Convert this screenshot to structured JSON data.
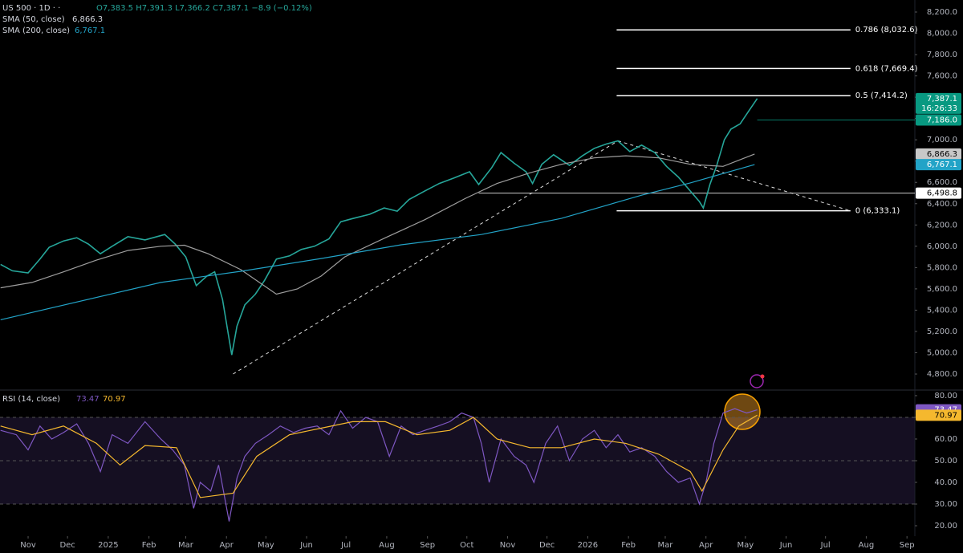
{
  "chart_data": [
    {
      "type": "line",
      "ohlc": "O7,383.5 H7,391.3 L7,366.2 C7,387.1 −8.9 (−0.12%)",
      "countdown": "16:26:33",
      "xlim": [
        -21.4,
        675
      ],
      "xticks": [
        {
          "value": 0,
          "label": "Nov"
        },
        {
          "value": 30,
          "label": "Dec"
        },
        {
          "value": 61,
          "label": "2025"
        },
        {
          "value": 92,
          "label": "Feb"
        },
        {
          "value": 120,
          "label": "Mar"
        },
        {
          "value": 151,
          "label": "Apr"
        },
        {
          "value": 181,
          "label": "May"
        },
        {
          "value": 212,
          "label": "Jun"
        },
        {
          "value": 242,
          "label": "Jul"
        },
        {
          "value": 273,
          "label": "Aug"
        },
        {
          "value": 304,
          "label": "Sep"
        },
        {
          "value": 334,
          "label": "Oct"
        },
        {
          "value": 365,
          "label": "Nov"
        },
        {
          "value": 395,
          "label": "Dec"
        },
        {
          "value": 426,
          "label": "2026"
        },
        {
          "value": 457,
          "label": "Feb"
        },
        {
          "value": 485,
          "label": "Mar"
        },
        {
          "value": 516,
          "label": "Apr"
        },
        {
          "value": 546,
          "label": "May"
        },
        {
          "value": 577,
          "label": "Jun"
        },
        {
          "value": 607,
          "label": "Jul"
        },
        {
          "value": 638,
          "label": "Aug"
        },
        {
          "value": 669,
          "label": "Sep"
        }
      ],
      "ylim": [
        4657,
        8313
      ],
      "yticks": [
        {
          "value": 4800,
          "label": "4,800.0"
        },
        {
          "value": 5000,
          "label": "5,000.0"
        },
        {
          "value": 5200,
          "label": "5,200.0"
        },
        {
          "value": 5400,
          "label": "5,400.0"
        },
        {
          "value": 5600,
          "label": "5,600.0"
        },
        {
          "value": 5800,
          "label": "5,800.0"
        },
        {
          "value": 6000,
          "label": "6,000.0"
        },
        {
          "value": 6200,
          "label": "6,200.0"
        },
        {
          "value": 6400,
          "label": "6,400.0"
        },
        {
          "value": 6600,
          "label": "6,600.0"
        },
        {
          "value": 6800,
          "label": "6,800.0"
        },
        {
          "value": 7000,
          "label": "7,000.0"
        },
        {
          "value": 7200,
          "label": "7,200.0"
        },
        {
          "value": 7400,
          "label": "7,400.0"
        },
        {
          "value": 7600,
          "label": "7,600.0"
        },
        {
          "value": 7800,
          "label": "7,800.0"
        },
        {
          "value": 8000,
          "label": "8,000.0"
        },
        {
          "value": 8200,
          "label": "8,200.0"
        }
      ],
      "grid": false,
      "series": [
        {
          "name": "US 500 · 1D · ·",
          "color": "#26a69a",
          "x": [
            -21,
            -12,
            0,
            9,
            16,
            27,
            37,
            46,
            55,
            64,
            76,
            89,
            104,
            112,
            120,
            128,
            136,
            142,
            148,
            155,
            159,
            165,
            173,
            180,
            189,
            199,
            208,
            218,
            229,
            238,
            247,
            260,
            271,
            281,
            290,
            302,
            313,
            324,
            336,
            343,
            353,
            360,
            370,
            379,
            384,
            391,
            400,
            412,
            422,
            431,
            440,
            449,
            458,
            467,
            477,
            486,
            495,
            504,
            511,
            514,
            519,
            524,
            530,
            535,
            542,
            548,
            555
          ],
          "values": [
            5830,
            5770,
            5750,
            5880,
            5990,
            6050,
            6080,
            6020,
            5930,
            6000,
            6090,
            6060,
            6110,
            6020,
            5900,
            5630,
            5720,
            5760,
            5500,
            4980,
            5250,
            5450,
            5550,
            5680,
            5880,
            5910,
            5970,
            6000,
            6070,
            6230,
            6260,
            6300,
            6360,
            6330,
            6440,
            6520,
            6590,
            6640,
            6700,
            6580,
            6740,
            6880,
            6780,
            6700,
            6590,
            6770,
            6860,
            6760,
            6850,
            6920,
            6960,
            6990,
            6890,
            6950,
            6880,
            6750,
            6650,
            6520,
            6420,
            6360,
            6580,
            6750,
            7000,
            7100,
            7150,
            7260,
            7387.1
          ]
        },
        {
          "name": "SMA (50, close)",
          "color": "#9e9e9e",
          "x": [
            -21,
            3,
            27,
            52,
            76,
            101,
            119,
            137,
            162,
            189,
            205,
            223,
            241,
            272,
            302,
            333,
            357,
            382,
            406,
            431,
            455,
            480,
            504,
            529,
            553
          ],
          "values": [
            5610,
            5660,
            5760,
            5870,
            5960,
            6000,
            6010,
            5930,
            5780,
            5550,
            5600,
            5720,
            5900,
            6080,
            6250,
            6450,
            6590,
            6690,
            6770,
            6830,
            6850,
            6830,
            6770,
            6750,
            6866.3
          ]
        },
        {
          "name": "SMA (200, close)",
          "color": "#22a3c7",
          "x": [
            -21,
            101,
            162,
            223,
            284,
            345,
            406,
            467,
            504,
            553
          ],
          "values": [
            5310,
            5660,
            5765,
            5885,
            6014,
            6110,
            6262,
            6480,
            6595,
            6767.1
          ]
        }
      ],
      "price_labels": [
        {
          "value": 7387.1,
          "label": "7,387.1",
          "color": "#089981"
        },
        {
          "value": 7186,
          "label": "7,186.0",
          "color": "#089981",
          "line_from": 555
        },
        {
          "value": 6866.3,
          "label": "6,866.3",
          "color": "#c8c8c8"
        },
        {
          "value": 6767.1,
          "label": "6,767.1",
          "color": "#22a3c7"
        },
        {
          "value": 6498.8,
          "label": "6,498.8",
          "color": "#ffffff",
          "line_from": 343
        }
      ],
      "fib_range": [
        448,
        626
      ],
      "fib_levels": [
        {
          "value": 8032.6,
          "label": "0.786 (8,032.6)"
        },
        {
          "value": 7669.4,
          "label": "0.618 (7,669.4)"
        },
        {
          "value": 7414.2,
          "label": "0.5 (7,414.2)"
        },
        {
          "value": 6333.1,
          "label": "0 (6,333.1)"
        }
      ],
      "trendlines": [
        {
          "x": [
            156,
            449
          ],
          "values": [
            4800,
            6990
          ]
        },
        {
          "x": [
            449,
            626
          ],
          "values": [
            6990,
            6333.1
          ]
        }
      ]
    },
    {
      "type": "line",
      "ylim": [
        15.2,
        82.2
      ],
      "yticks": [
        {
          "value": 20,
          "label": "20.00"
        },
        {
          "value": 30,
          "label": "30.00"
        },
        {
          "value": 40,
          "label": "40.00"
        },
        {
          "value": 50,
          "label": "50.00"
        },
        {
          "value": 60,
          "label": "60.00"
        },
        {
          "value": 70,
          "label": "70.00"
        },
        {
          "value": 80,
          "label": "80.00"
        }
      ],
      "band": [
        30,
        70
      ],
      "dashed_levels": [
        70,
        50,
        30
      ],
      "series": [
        {
          "name": "RSI (14, close)",
          "color": "#7e57c2",
          "x": [
            -21,
            -9,
            0,
            9,
            18,
            27,
            37,
            46,
            55,
            64,
            76,
            89,
            101,
            110,
            119,
            126,
            131,
            139,
            145,
            153,
            159,
            165,
            173,
            183,
            192,
            202,
            211,
            220,
            229,
            238,
            247,
            257,
            266,
            275,
            284,
            293,
            302,
            312,
            321,
            330,
            339,
            345,
            351,
            360,
            370,
            379,
            385,
            394,
            403,
            412,
            422,
            431,
            440,
            449,
            458,
            467,
            477,
            486,
            495,
            504,
            511,
            516,
            522,
            529,
            538,
            547,
            555
          ],
          "values": [
            64,
            62,
            55,
            66,
            60,
            63,
            67,
            58,
            45,
            62,
            58,
            68,
            60,
            55,
            48,
            28,
            40,
            36,
            48,
            22,
            42,
            52,
            58,
            62,
            66,
            63,
            65,
            66,
            62,
            73,
            65,
            70,
            68,
            52,
            66,
            62,
            64,
            66,
            68,
            72,
            70,
            58,
            40,
            60,
            52,
            48,
            40,
            58,
            66,
            50,
            60,
            64,
            56,
            62,
            54,
            56,
            52,
            45,
            40,
            42,
            30,
            40,
            58,
            72,
            74,
            72,
            73.47
          ]
        },
        {
          "name": "RSI-based MA",
          "color": "#f5b82e",
          "x": [
            -21,
            3,
            27,
            52,
            70,
            89,
            113,
            131,
            156,
            174,
            199,
            223,
            247,
            272,
            296,
            321,
            339,
            357,
            382,
            406,
            431,
            455,
            480,
            504,
            513,
            529,
            541,
            555
          ],
          "values": [
            66,
            62,
            66,
            58,
            48,
            57,
            56,
            33,
            35,
            52,
            62,
            65,
            68,
            68,
            62,
            64,
            70,
            60,
            56,
            56,
            60,
            58,
            53,
            45,
            36,
            55,
            66,
            70.97
          ]
        }
      ],
      "price_labels": [
        {
          "value": 73.47,
          "label": "73.47",
          "color": "#7e57c2"
        },
        {
          "value": 70.97,
          "label": "70.97",
          "color": "#f5b82e"
        }
      ]
    }
  ]
}
